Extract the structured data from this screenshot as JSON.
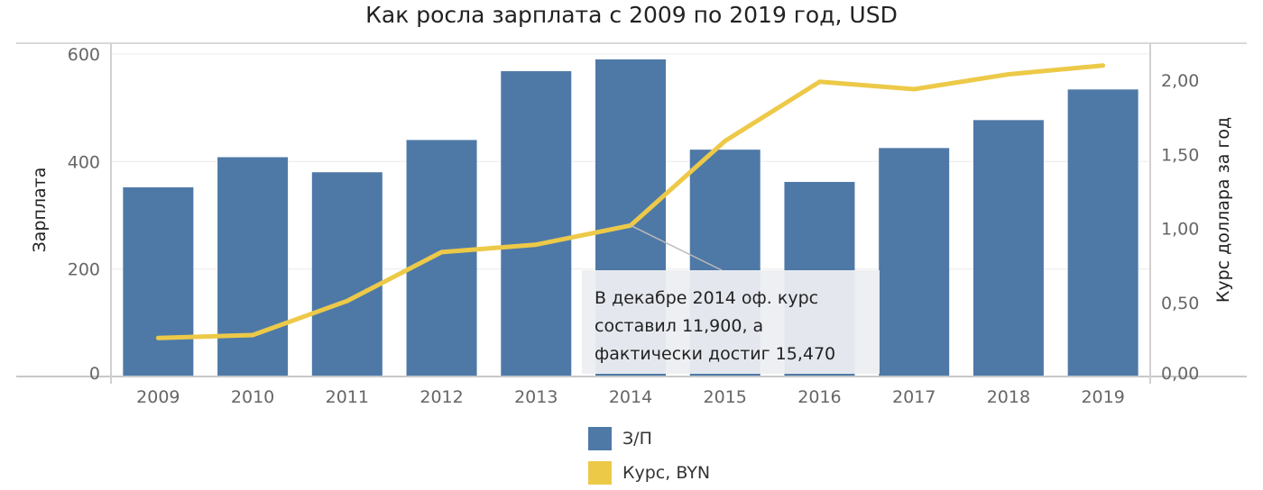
{
  "chart_data": {
    "type": "bar",
    "title": "Как росла зарплата с 2009 по 2019 год, USD",
    "categories": [
      "2009",
      "2010",
      "2011",
      "2012",
      "2013",
      "2014",
      "2015",
      "2016",
      "2017",
      "2018",
      "2019"
    ],
    "series": [
      {
        "name": "З/П",
        "type": "bar",
        "axis": "left",
        "color": "#4e79a7",
        "values": [
          352,
          408,
          380,
          440,
          568,
          590,
          422,
          362,
          425,
          477,
          534
        ]
      },
      {
        "name": "Курс, BYN",
        "type": "line",
        "axis": "right",
        "color": "#edc948",
        "values": [
          0.26,
          0.28,
          0.51,
          0.84,
          0.89,
          1.02,
          1.59,
          1.99,
          1.94,
          2.04,
          2.1
        ]
      }
    ],
    "ylabel": "Зарплата",
    "ylabel_right": "Курс доллара за год",
    "ylim": [
      0,
      620
    ],
    "ylim_right": [
      0,
      2.25
    ],
    "yticks": [
      0,
      200,
      400,
      600
    ],
    "yticks_right": [
      "0,00",
      "0,50",
      "1,00",
      "1,50",
      "2,00"
    ],
    "yticks_right_values": [
      0,
      0.5,
      1.0,
      1.5,
      2.0
    ],
    "grid": true,
    "legend_position": "bottom-center",
    "annotation": {
      "lines": [
        "В декабре 2014  оф. курс",
        "составил 11,900, а",
        "фактически достиг 15,470"
      ],
      "target_category": "2014"
    }
  }
}
